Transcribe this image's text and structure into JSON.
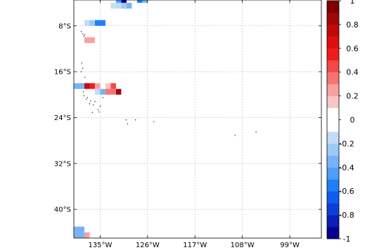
{
  "map": {
    "projection": "lat-lon grid",
    "extent": {
      "lon": [
        -140,
        -93
      ],
      "lat": [
        -45,
        -3.5
      ]
    },
    "lon_ticks": [
      {
        "lon": -135,
        "label": "135°W"
      },
      {
        "lon": -126,
        "label": "126°W"
      },
      {
        "lon": -117,
        "label": "117°W"
      },
      {
        "lon": -108,
        "label": "108°W"
      },
      {
        "lon": -99,
        "label": "99°W"
      }
    ],
    "lat_ticks": [
      {
        "lat": -8,
        "label": "8°S"
      },
      {
        "lat": -16,
        "label": "16°S"
      },
      {
        "lat": -24,
        "label": "24°S"
      },
      {
        "lat": -32,
        "label": "32°S"
      },
      {
        "lat": -40,
        "label": "40°S"
      }
    ],
    "grid": true,
    "grid_style": "dashed gray",
    "cell_size_deg": 1,
    "cells": [
      {
        "lon": -131.5,
        "lat": -3.5,
        "value": -0.45
      },
      {
        "lon": -130.5,
        "lat": -3.5,
        "value": -1.0
      },
      {
        "lon": -127.5,
        "lat": -3.5,
        "value": -0.55
      },
      {
        "lon": -126.5,
        "lat": -3.5,
        "value": -0.35
      },
      {
        "lon": -132.5,
        "lat": -4.5,
        "value": -0.15
      },
      {
        "lon": -131.5,
        "lat": -4.5,
        "value": -0.15
      },
      {
        "lon": -130.5,
        "lat": -4.5,
        "value": -0.3
      },
      {
        "lon": -129.5,
        "lat": -4.5,
        "value": -0.4
      },
      {
        "lon": -137.5,
        "lat": -7.5,
        "value": -0.2
      },
      {
        "lon": -136.5,
        "lat": -7.5,
        "value": -0.25
      },
      {
        "lon": -135.5,
        "lat": -7.5,
        "value": -0.55
      },
      {
        "lon": -134.5,
        "lat": -7.5,
        "value": -0.55
      },
      {
        "lon": -137.5,
        "lat": -10.5,
        "value": 0.2
      },
      {
        "lon": -136.5,
        "lat": -10.5,
        "value": 0.2
      },
      {
        "lon": -139.5,
        "lat": -18.5,
        "value": -0.35
      },
      {
        "lon": -138.5,
        "lat": -18.5,
        "value": -0.35
      },
      {
        "lon": -137.5,
        "lat": -18.5,
        "value": 0.75
      },
      {
        "lon": -136.5,
        "lat": -18.5,
        "value": 0.55
      },
      {
        "lon": -135.5,
        "lat": -18.5,
        "value": 0.2
      },
      {
        "lon": -133.5,
        "lat": -18.5,
        "value": 0.15
      },
      {
        "lon": -132.5,
        "lat": -18.5,
        "value": 0.45
      },
      {
        "lon": -135.5,
        "lat": -19.5,
        "value": -0.15
      },
      {
        "lon": -134.5,
        "lat": -19.5,
        "value": -0.35
      },
      {
        "lon": -133.5,
        "lat": -19.5,
        "value": 0.3
      },
      {
        "lon": -132.5,
        "lat": -19.5,
        "value": 0.35
      },
      {
        "lon": -131.5,
        "lat": -19.5,
        "value": 0.85
      },
      {
        "lon": -139.5,
        "lat": -43.5,
        "value": -0.35
      },
      {
        "lon": -138.5,
        "lat": -43.5,
        "value": -0.35
      },
      {
        "lon": -139.5,
        "lat": -44.5,
        "value": -0.35
      },
      {
        "lon": -138.5,
        "lat": -44.5,
        "value": -0.35
      },
      {
        "lon": -137.5,
        "lat": -44.5,
        "value": 0.2
      }
    ],
    "islands": [
      [
        -138.6,
        -9.0
      ],
      [
        -138.3,
        -9.4
      ],
      [
        -138.1,
        -9.8
      ],
      [
        -137.9,
        -9.6
      ],
      [
        -138.5,
        -14.5
      ],
      [
        -138.3,
        -15.4
      ],
      [
        -138.6,
        -16.0
      ],
      [
        -137.9,
        -17.0
      ],
      [
        -138.2,
        -19.5
      ],
      [
        -138.1,
        -20.2
      ],
      [
        -137.6,
        -20.8
      ],
      [
        -137.4,
        -20.5
      ],
      [
        -137.0,
        -21.6
      ],
      [
        -136.8,
        -21.1
      ],
      [
        -136.3,
        -21.8
      ],
      [
        -136.0,
        -21.2
      ],
      [
        -135.4,
        -22.6
      ],
      [
        -135.0,
        -22.0
      ],
      [
        -134.5,
        -20.5
      ],
      [
        -135.2,
        -23.0
      ],
      [
        -136.5,
        -23.1
      ],
      [
        -130.1,
        -24.4
      ],
      [
        -129.8,
        -25.1
      ],
      [
        -128.3,
        -24.4
      ],
      [
        -124.8,
        -24.7
      ],
      [
        -109.4,
        -27.1
      ],
      [
        -105.4,
        -26.5
      ]
    ]
  },
  "colorbar": {
    "range": [
      -1,
      1
    ],
    "levels": [
      -1,
      -0.9,
      -0.8,
      -0.7,
      -0.6,
      -0.5,
      -0.4,
      -0.3,
      -0.2,
      -0.1,
      0,
      0.1,
      0.2,
      0.3,
      0.4,
      0.5,
      0.6,
      0.7,
      0.8,
      0.9,
      1
    ],
    "colors": [
      "#08008c",
      "#0a1fb8",
      "#0b3fd8",
      "#0d5ef0",
      "#1f7ff7",
      "#4e9ef8",
      "#76b4f8",
      "#9ec9f7",
      "#c3dbf6",
      "#ffffff",
      "#ffffff",
      "#f7c6c6",
      "#f7a0a0",
      "#f57474",
      "#f44848",
      "#f21c1c",
      "#e00d0d",
      "#c00a0a",
      "#a00808",
      "#800000"
    ],
    "tick_labels": [
      "1",
      "0.8",
      "0.6",
      "0.4",
      "0.2",
      "0",
      "-0.2",
      "-0.4",
      "-0.6",
      "-0.8",
      "-1"
    ],
    "tick_values": [
      1,
      0.8,
      0.6,
      0.4,
      0.2,
      0,
      -0.2,
      -0.4,
      -0.6,
      -0.8,
      -1
    ]
  }
}
